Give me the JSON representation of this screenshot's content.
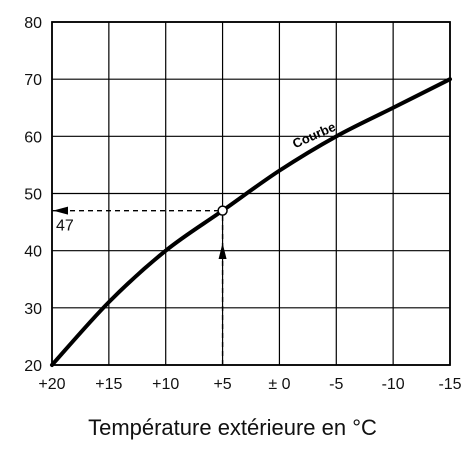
{
  "chart_data": {
    "type": "line",
    "xlabel": "Température extérieure en °C",
    "ylabel": "",
    "x_ticks": [
      {
        "value": 20,
        "label": "+20"
      },
      {
        "value": 15,
        "label": "+15"
      },
      {
        "value": 10,
        "label": "+10"
      },
      {
        "value": 5,
        "label": "+5"
      },
      {
        "value": 0,
        "label": "± 0"
      },
      {
        "value": -5,
        "label": "-5"
      },
      {
        "value": -10,
        "label": "-10"
      },
      {
        "value": -15,
        "label": "-15"
      }
    ],
    "xlim": [
      20,
      -15
    ],
    "ylim": [
      20,
      80
    ],
    "y_ticks": [
      20,
      30,
      40,
      50,
      60,
      70,
      80
    ],
    "grid": true,
    "series": [
      {
        "name": "Courbe",
        "x": [
          20,
          15,
          10,
          5,
          0,
          -5,
          -10,
          -15
        ],
        "y": [
          20,
          31,
          40,
          47,
          54,
          60,
          65,
          70
        ]
      }
    ],
    "annotations": [
      {
        "type": "marker",
        "x": 5,
        "y": 47
      },
      {
        "type": "arrow",
        "text": "47",
        "x": 5,
        "y": 47
      }
    ]
  }
}
